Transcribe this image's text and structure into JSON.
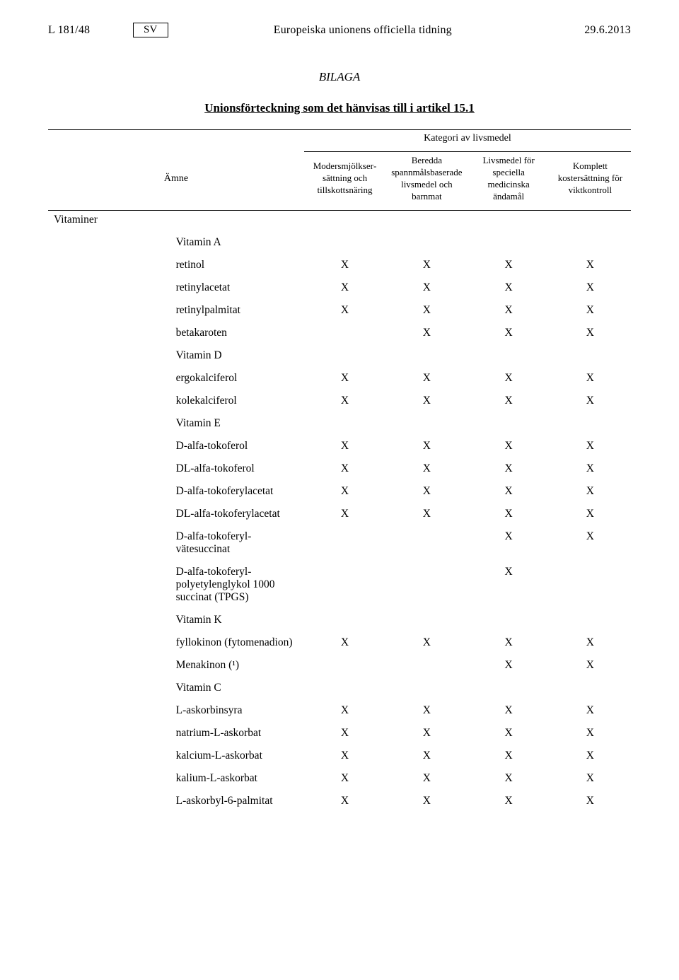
{
  "header": {
    "page_ref": "L 181/48",
    "lang": "SV",
    "journal": "Europeiska unionens officiella tidning",
    "date": "29.6.2013"
  },
  "titles": {
    "annex": "BILAGA",
    "union_list": "Unionsförteckning som det hänvisas till i artikel 15.1"
  },
  "table": {
    "kategori_heading": "Kategori av livsmedel",
    "col_amne": "Ämne",
    "cols": [
      "Modersmjölkser­sättning och tillskottsnäring",
      "Beredda spannmålsbaserade livsmedel och barnmat",
      "Livsmedel för speciella medicinska ändamål",
      "Komplett kostersättning för viktkontroll"
    ],
    "group_main": "Vitaminer",
    "sections": [
      {
        "name": "Vitamin A",
        "rows": [
          {
            "label": "retinol",
            "v": [
              "X",
              "X",
              "X",
              "X"
            ]
          },
          {
            "label": "retinylacetat",
            "v": [
              "X",
              "X",
              "X",
              "X"
            ]
          },
          {
            "label": "retinylpalmitat",
            "v": [
              "X",
              "X",
              "X",
              "X"
            ]
          },
          {
            "label": "betakaroten",
            "v": [
              "",
              "X",
              "X",
              "X"
            ]
          }
        ]
      },
      {
        "name": "Vitamin D",
        "rows": [
          {
            "label": "ergokalciferol",
            "v": [
              "X",
              "X",
              "X",
              "X"
            ]
          },
          {
            "label": "kolekalciferol",
            "v": [
              "X",
              "X",
              "X",
              "X"
            ]
          }
        ]
      },
      {
        "name": "Vitamin E",
        "rows": [
          {
            "label": "D-alfa-tokoferol",
            "v": [
              "X",
              "X",
              "X",
              "X"
            ]
          },
          {
            "label": "DL-alfa-tokoferol",
            "v": [
              "X",
              "X",
              "X",
              "X"
            ]
          },
          {
            "label": "D-alfa-tokoferyla­cetat",
            "v": [
              "X",
              "X",
              "X",
              "X"
            ]
          },
          {
            "label": "DL-alfa-tokoferyl­acetat",
            "v": [
              "X",
              "X",
              "X",
              "X"
            ]
          },
          {
            "label": "D-alfa-tokoferyl­vätesuccinat",
            "v": [
              "",
              "",
              "X",
              "X"
            ]
          },
          {
            "label": "D-alfa-tokoferyl­polyetylenglykol 1000 succinat (TPGS)",
            "v": [
              "",
              "",
              "X",
              ""
            ]
          }
        ]
      },
      {
        "name": "Vitamin K",
        "rows": [
          {
            "label": "fyllokinon (fytomenadion)",
            "v": [
              "X",
              "X",
              "X",
              "X"
            ]
          },
          {
            "label": "Menakinon (¹)",
            "v": [
              "",
              "",
              "X",
              "X"
            ]
          }
        ]
      },
      {
        "name": "Vitamin C",
        "rows": [
          {
            "label": "L-askorbinsyra",
            "v": [
              "X",
              "X",
              "X",
              "X"
            ]
          },
          {
            "label": "natrium-L-askorbat",
            "v": [
              "X",
              "X",
              "X",
              "X"
            ]
          },
          {
            "label": "kalcium-L-askorbat",
            "v": [
              "X",
              "X",
              "X",
              "X"
            ]
          },
          {
            "label": "kalium-L-askorbat",
            "v": [
              "X",
              "X",
              "X",
              "X"
            ]
          },
          {
            "label": "L-askorbyl-6-palmitat",
            "v": [
              "X",
              "X",
              "X",
              "X"
            ]
          }
        ]
      }
    ]
  }
}
